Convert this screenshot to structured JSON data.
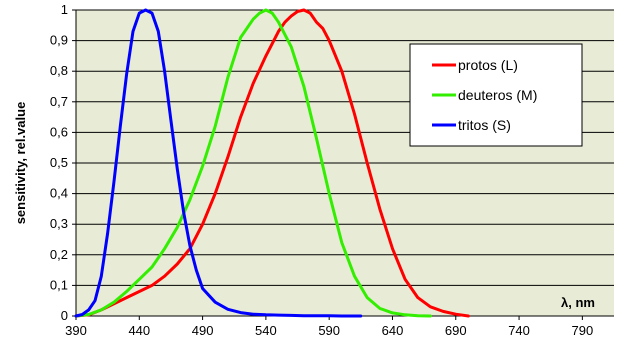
{
  "chart_data": {
    "type": "line",
    "ylabel": "sensitivity, rel.value",
    "x_unit_label": "λ, nm",
    "xlim": [
      390,
      815
    ],
    "ylim": [
      0,
      1
    ],
    "x_ticks": [
      "390",
      "440",
      "490",
      "540",
      "590",
      "640",
      "690",
      "740",
      "790"
    ],
    "y_ticks": [
      "0",
      "0,1",
      "0,2",
      "0,3",
      "0,4",
      "0,5",
      "0,6",
      "0,7",
      "0,8",
      "0,9",
      "1"
    ],
    "grid": true,
    "legend_position": "top-right",
    "plot_background": "#e8ecd6",
    "series": [
      {
        "name": "protos (L)",
        "color": "#ff0000",
        "x": [
          390,
          400,
          410,
          420,
          430,
          440,
          450,
          460,
          470,
          480,
          490,
          500,
          510,
          520,
          530,
          540,
          550,
          555,
          560,
          565,
          570,
          575,
          580,
          585,
          590,
          600,
          610,
          620,
          630,
          640,
          650,
          660,
          670,
          680,
          690,
          700
        ],
        "y": [
          0,
          0.004,
          0.02,
          0.04,
          0.06,
          0.08,
          0.1,
          0.13,
          0.17,
          0.22,
          0.3,
          0.4,
          0.52,
          0.65,
          0.76,
          0.85,
          0.93,
          0.96,
          0.98,
          0.995,
          1,
          0.99,
          0.96,
          0.94,
          0.9,
          0.8,
          0.66,
          0.5,
          0.35,
          0.22,
          0.12,
          0.06,
          0.03,
          0.015,
          0.006,
          0
        ]
      },
      {
        "name": "deuteros (M)",
        "color": "#33ee00",
        "x": [
          390,
          400,
          410,
          420,
          430,
          440,
          450,
          460,
          470,
          480,
          490,
          500,
          510,
          520,
          530,
          535,
          540,
          545,
          550,
          560,
          570,
          580,
          590,
          600,
          610,
          620,
          630,
          640,
          650,
          660,
          670
        ],
        "y": [
          0,
          0.005,
          0.02,
          0.045,
          0.08,
          0.12,
          0.16,
          0.22,
          0.29,
          0.38,
          0.49,
          0.62,
          0.78,
          0.91,
          0.97,
          0.99,
          1,
          0.99,
          0.96,
          0.88,
          0.75,
          0.58,
          0.4,
          0.24,
          0.13,
          0.06,
          0.025,
          0.01,
          0.004,
          0.001,
          0
        ]
      },
      {
        "name": "tritos (S)",
        "color": "#0000ff",
        "x": [
          390,
          395,
          400,
          405,
          410,
          415,
          420,
          425,
          430,
          435,
          440,
          445,
          450,
          455,
          460,
          465,
          470,
          475,
          480,
          485,
          490,
          500,
          510,
          520,
          530,
          540,
          550,
          560,
          570,
          580,
          590,
          600,
          615
        ],
        "y": [
          0,
          0.005,
          0.02,
          0.05,
          0.13,
          0.27,
          0.44,
          0.62,
          0.79,
          0.93,
          0.99,
          1,
          0.99,
          0.93,
          0.8,
          0.64,
          0.48,
          0.34,
          0.23,
          0.15,
          0.09,
          0.045,
          0.022,
          0.011,
          0.006,
          0.004,
          0.003,
          0.002,
          0.001,
          0.001,
          0.001,
          0,
          0
        ]
      }
    ]
  }
}
